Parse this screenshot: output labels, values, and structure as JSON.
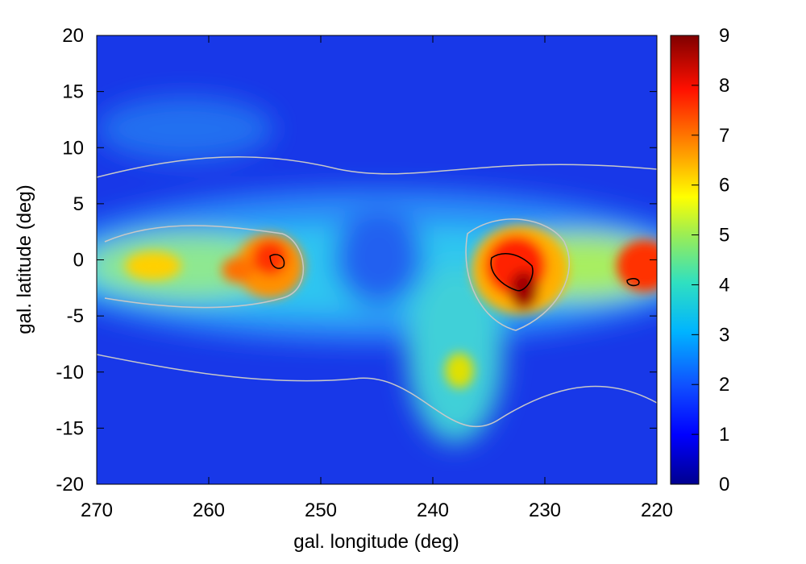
{
  "chart_data": {
    "type": "heatmap",
    "title": "",
    "xlabel": "gal. longitude (deg)",
    "ylabel": "gal. latitude (deg)",
    "xlim": [
      270,
      220
    ],
    "ylim": [
      -20,
      20
    ],
    "x_ticks": [
      270,
      260,
      250,
      240,
      230,
      220
    ],
    "y_ticks": [
      -20,
      -15,
      -10,
      -5,
      0,
      5,
      10,
      15,
      20
    ],
    "colorbar": {
      "range": [
        0,
        9
      ],
      "ticks": [
        0,
        1,
        2,
        3,
        4,
        5,
        6,
        7,
        8,
        9
      ],
      "colormap": "jet"
    },
    "contours": [
      {
        "level": 2,
        "color": "#c8c8c8"
      },
      {
        "level": 4,
        "color": "#c8c8c8"
      },
      {
        "level": 8,
        "color": "#000000"
      }
    ],
    "features": [
      {
        "longitude": 232,
        "latitude": 1,
        "peak": 9
      },
      {
        "longitude": 231.5,
        "latitude": -2.5,
        "peak": 8.5
      },
      {
        "longitude": 255,
        "latitude": 1,
        "peak": 7
      },
      {
        "longitude": 257,
        "latitude": -0.5,
        "peak": 6.5
      },
      {
        "longitude": 266,
        "latitude": 0,
        "peak": 5.5
      },
      {
        "longitude": 221,
        "latitude": -0.5,
        "peak": 7.5
      },
      {
        "longitude": 238,
        "latitude": -10,
        "peak": 4.5
      }
    ]
  }
}
